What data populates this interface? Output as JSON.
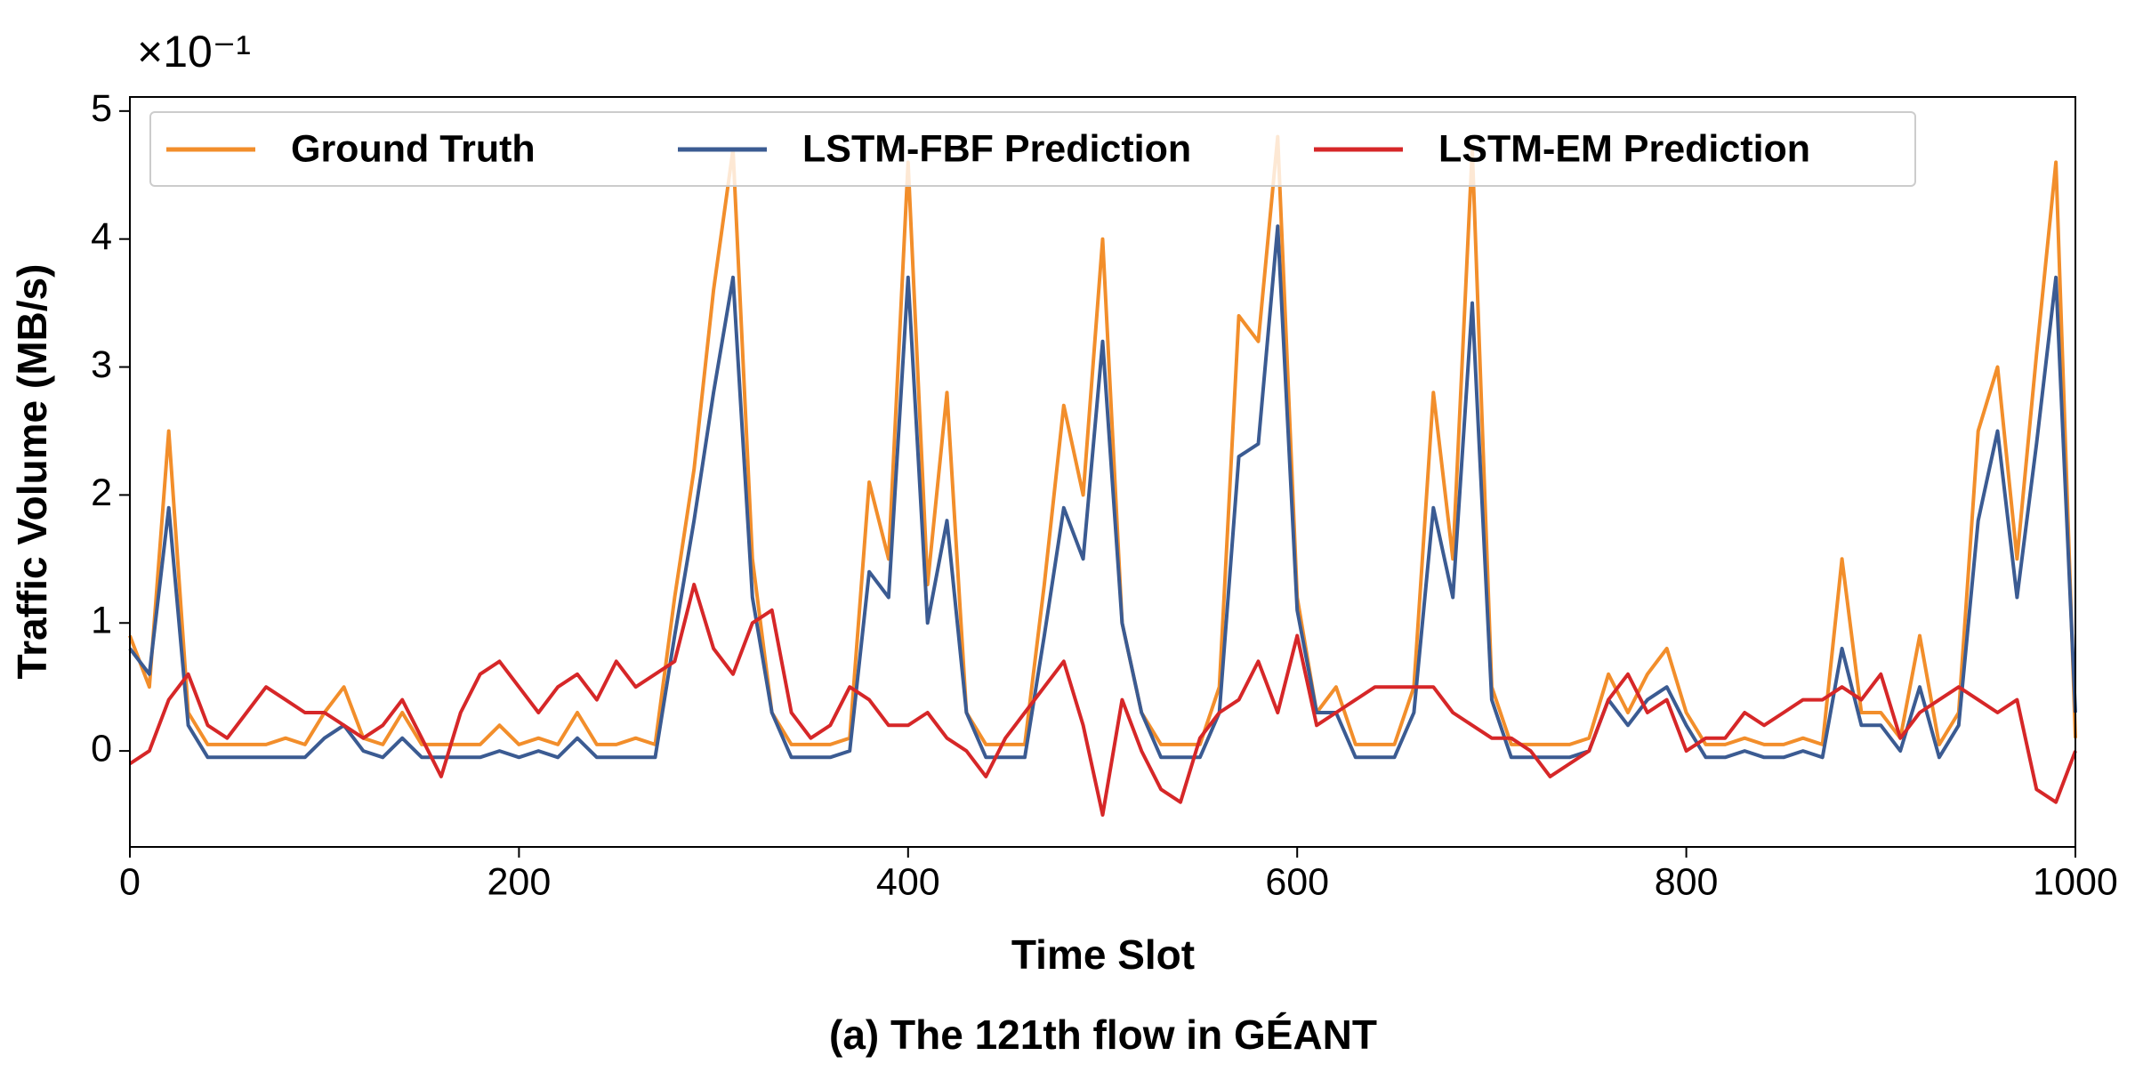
{
  "chart_data": {
    "type": "line",
    "title": "(a) The 121th flow in GÉANT",
    "x_label": "Time Slot",
    "y_label": "Traffic Volume (MB/s)",
    "y_offset_text": "×10⁻¹",
    "x": [
      0,
      10,
      20,
      30,
      40,
      50,
      60,
      70,
      80,
      90,
      100,
      110,
      120,
      130,
      140,
      150,
      160,
      170,
      180,
      190,
      200,
      210,
      220,
      230,
      240,
      250,
      260,
      270,
      280,
      290,
      300,
      310,
      320,
      330,
      340,
      350,
      360,
      370,
      380,
      390,
      400,
      410,
      420,
      430,
      440,
      450,
      460,
      470,
      480,
      490,
      500,
      510,
      520,
      530,
      540,
      550,
      560,
      570,
      580,
      590,
      600,
      610,
      620,
      630,
      640,
      650,
      660,
      670,
      680,
      690,
      700,
      710,
      720,
      730,
      740,
      750,
      760,
      770,
      780,
      790,
      800,
      810,
      820,
      830,
      840,
      850,
      860,
      870,
      880,
      890,
      900,
      910,
      920,
      930,
      940,
      950,
      960,
      970,
      980,
      990,
      1000
    ],
    "series": [
      {
        "name": "Ground Truth",
        "color": "#f28e2b",
        "values": [
          0.9,
          0.5,
          2.5,
          0.3,
          0.05,
          0.05,
          0.05,
          0.05,
          0.1,
          0.05,
          0.3,
          0.5,
          0.1,
          0.05,
          0.3,
          0.05,
          0.05,
          0.05,
          0.05,
          0.2,
          0.05,
          0.1,
          0.05,
          0.3,
          0.05,
          0.05,
          0.1,
          0.05,
          1.2,
          2.2,
          3.6,
          4.7,
          1.5,
          0.3,
          0.05,
          0.05,
          0.05,
          0.1,
          2.1,
          1.5,
          4.6,
          1.3,
          2.8,
          0.3,
          0.05,
          0.05,
          0.05,
          1.3,
          2.7,
          2.0,
          4.0,
          1.0,
          0.3,
          0.05,
          0.05,
          0.05,
          0.5,
          3.4,
          3.2,
          4.8,
          1.2,
          0.3,
          0.5,
          0.05,
          0.05,
          0.05,
          0.5,
          2.8,
          1.5,
          4.7,
          0.5,
          0.05,
          0.05,
          0.05,
          0.05,
          0.1,
          0.6,
          0.3,
          0.6,
          0.8,
          0.3,
          0.05,
          0.05,
          0.1,
          0.05,
          0.05,
          0.1,
          0.05,
          1.5,
          0.3,
          0.3,
          0.1,
          0.9,
          0.05,
          0.3,
          2.5,
          3.0,
          1.5,
          3.1,
          4.6,
          0.1
        ]
      },
      {
        "name": "LSTM-FBF Prediction",
        "color": "#3b5b92",
        "values": [
          0.8,
          0.6,
          1.9,
          0.2,
          -0.05,
          -0.05,
          -0.05,
          -0.05,
          -0.05,
          -0.05,
          0.1,
          0.2,
          0.0,
          -0.05,
          0.1,
          -0.05,
          -0.05,
          -0.05,
          -0.05,
          0.0,
          -0.05,
          0.0,
          -0.05,
          0.1,
          -0.05,
          -0.05,
          -0.05,
          -0.05,
          0.9,
          1.8,
          2.8,
          3.7,
          1.2,
          0.3,
          -0.05,
          -0.05,
          -0.05,
          0.0,
          1.4,
          1.2,
          3.7,
          1.0,
          1.8,
          0.3,
          -0.05,
          -0.05,
          -0.05,
          0.9,
          1.9,
          1.5,
          3.2,
          1.0,
          0.3,
          -0.05,
          -0.05,
          -0.05,
          0.3,
          2.3,
          2.4,
          4.1,
          1.1,
          0.3,
          0.3,
          -0.05,
          -0.05,
          -0.05,
          0.3,
          1.9,
          1.2,
          3.5,
          0.4,
          -0.05,
          -0.05,
          -0.05,
          -0.05,
          0.0,
          0.4,
          0.2,
          0.4,
          0.5,
          0.2,
          -0.05,
          -0.05,
          0.0,
          -0.05,
          -0.05,
          0.0,
          -0.05,
          0.8,
          0.2,
          0.2,
          0.0,
          0.5,
          -0.05,
          0.2,
          1.8,
          2.5,
          1.2,
          2.4,
          3.7,
          0.3
        ]
      },
      {
        "name": "LSTM-EM Prediction",
        "color": "#d62728",
        "values": [
          -0.1,
          0.0,
          0.4,
          0.6,
          0.2,
          0.1,
          0.3,
          0.5,
          0.4,
          0.3,
          0.3,
          0.2,
          0.1,
          0.2,
          0.4,
          0.1,
          -0.2,
          0.3,
          0.6,
          0.7,
          0.5,
          0.3,
          0.5,
          0.6,
          0.4,
          0.7,
          0.5,
          0.6,
          0.7,
          1.3,
          0.8,
          0.6,
          1.0,
          1.1,
          0.3,
          0.1,
          0.2,
          0.5,
          0.4,
          0.2,
          0.2,
          0.3,
          0.1,
          0.0,
          -0.2,
          0.1,
          0.3,
          0.5,
          0.7,
          0.2,
          -0.5,
          0.4,
          0.0,
          -0.3,
          -0.4,
          0.1,
          0.3,
          0.4,
          0.7,
          0.3,
          0.9,
          0.2,
          0.3,
          0.4,
          0.5,
          0.5,
          0.5,
          0.5,
          0.3,
          0.2,
          0.1,
          0.1,
          0.0,
          -0.2,
          -0.1,
          0.0,
          0.4,
          0.6,
          0.3,
          0.4,
          0.0,
          0.1,
          0.1,
          0.3,
          0.2,
          0.3,
          0.4,
          0.4,
          0.5,
          0.4,
          0.6,
          0.1,
          0.3,
          0.4,
          0.5,
          0.4,
          0.3,
          0.4,
          -0.3,
          -0.4,
          0.0
        ]
      }
    ],
    "xlim": [
      0,
      1000
    ],
    "xticks": [
      0,
      200,
      400,
      600,
      800,
      1000
    ],
    "ylim": [
      -0.75,
      5.11
    ],
    "yticks": [
      0,
      1,
      2,
      3,
      4,
      5
    ],
    "grid": false,
    "legend": "upper left"
  }
}
